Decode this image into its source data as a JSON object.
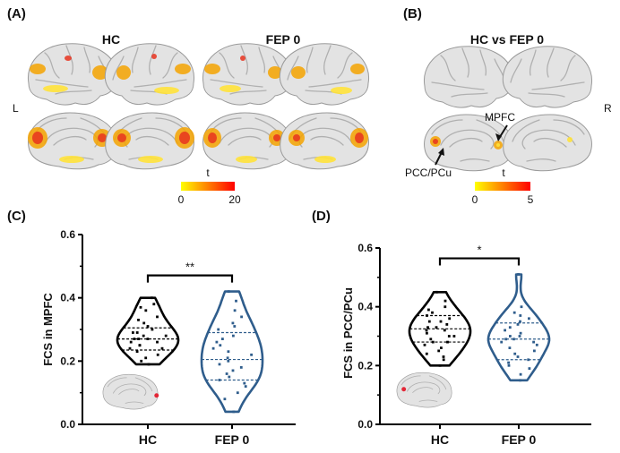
{
  "panels": {
    "A": {
      "label": "(A)",
      "group1": "HC",
      "group2": "FEP 0",
      "left_marker": "L",
      "colorbar": {
        "title": "t",
        "min": "0",
        "max": "20",
        "colors": [
          "#ffff00",
          "#ff0000"
        ]
      }
    },
    "B": {
      "label": "(B)",
      "title": "HC vs FEP 0",
      "right_marker": "R",
      "annotations": [
        "MPFC",
        "PCC/PCu"
      ],
      "colorbar": {
        "title": "t",
        "min": "0",
        "max": "5",
        "colors": [
          "#ffff00",
          "#ff0000"
        ]
      }
    }
  },
  "colors": {
    "hc": "#000000",
    "fep": "#2f5d8c",
    "marker": "#e32636"
  },
  "chart_data": [
    {
      "type": "violin",
      "panel_label": "(C)",
      "ylabel": "FCS in MPFC",
      "categories": [
        "HC",
        "FEP 0"
      ],
      "ylim": [
        0.0,
        0.6
      ],
      "yticks": [
        "0.0",
        "0.2",
        "0.4",
        "0.6"
      ],
      "significance": "**",
      "series": [
        {
          "values": [
            0.4,
            0.38,
            0.37,
            0.36,
            0.34,
            0.33,
            0.32,
            0.31,
            0.3,
            0.29,
            0.29,
            0.28,
            0.28,
            0.27,
            0.27,
            0.27,
            0.26,
            0.26,
            0.25,
            0.25,
            0.24,
            0.24,
            0.23,
            0.22,
            0.21,
            0.2,
            0.19
          ],
          "quartiles": [
            0.235,
            0.27,
            0.305
          ]
        },
        {
          "values": [
            0.42,
            0.39,
            0.36,
            0.34,
            0.32,
            0.31,
            0.3,
            0.28,
            0.27,
            0.26,
            0.25,
            0.24,
            0.23,
            0.22,
            0.21,
            0.2,
            0.19,
            0.18,
            0.17,
            0.16,
            0.15,
            0.14,
            0.13,
            0.12,
            0.1,
            0.08,
            0.04
          ],
          "quartiles": [
            0.14,
            0.205,
            0.29
          ]
        }
      ]
    },
    {
      "type": "violin",
      "panel_label": "(D)",
      "ylabel": "FCS in PCC/PCu",
      "categories": [
        "HC",
        "FEP 0"
      ],
      "ylim": [
        0.0,
        0.6
      ],
      "yticks": [
        "0.0",
        "0.2",
        "0.4",
        "0.6"
      ],
      "significance": "*",
      "series": [
        {
          "values": [
            0.45,
            0.42,
            0.4,
            0.39,
            0.38,
            0.37,
            0.36,
            0.35,
            0.35,
            0.34,
            0.33,
            0.33,
            0.32,
            0.32,
            0.31,
            0.3,
            0.3,
            0.29,
            0.28,
            0.28,
            0.27,
            0.26,
            0.25,
            0.24,
            0.23,
            0.22,
            0.2
          ],
          "quartiles": [
            0.28,
            0.325,
            0.37
          ]
        },
        {
          "values": [
            0.51,
            0.4,
            0.38,
            0.37,
            0.36,
            0.35,
            0.34,
            0.33,
            0.32,
            0.31,
            0.3,
            0.3,
            0.29,
            0.29,
            0.28,
            0.28,
            0.27,
            0.26,
            0.25,
            0.24,
            0.23,
            0.22,
            0.21,
            0.2,
            0.19,
            0.17,
            0.15
          ],
          "quartiles": [
            0.22,
            0.29,
            0.345
          ]
        }
      ]
    }
  ]
}
